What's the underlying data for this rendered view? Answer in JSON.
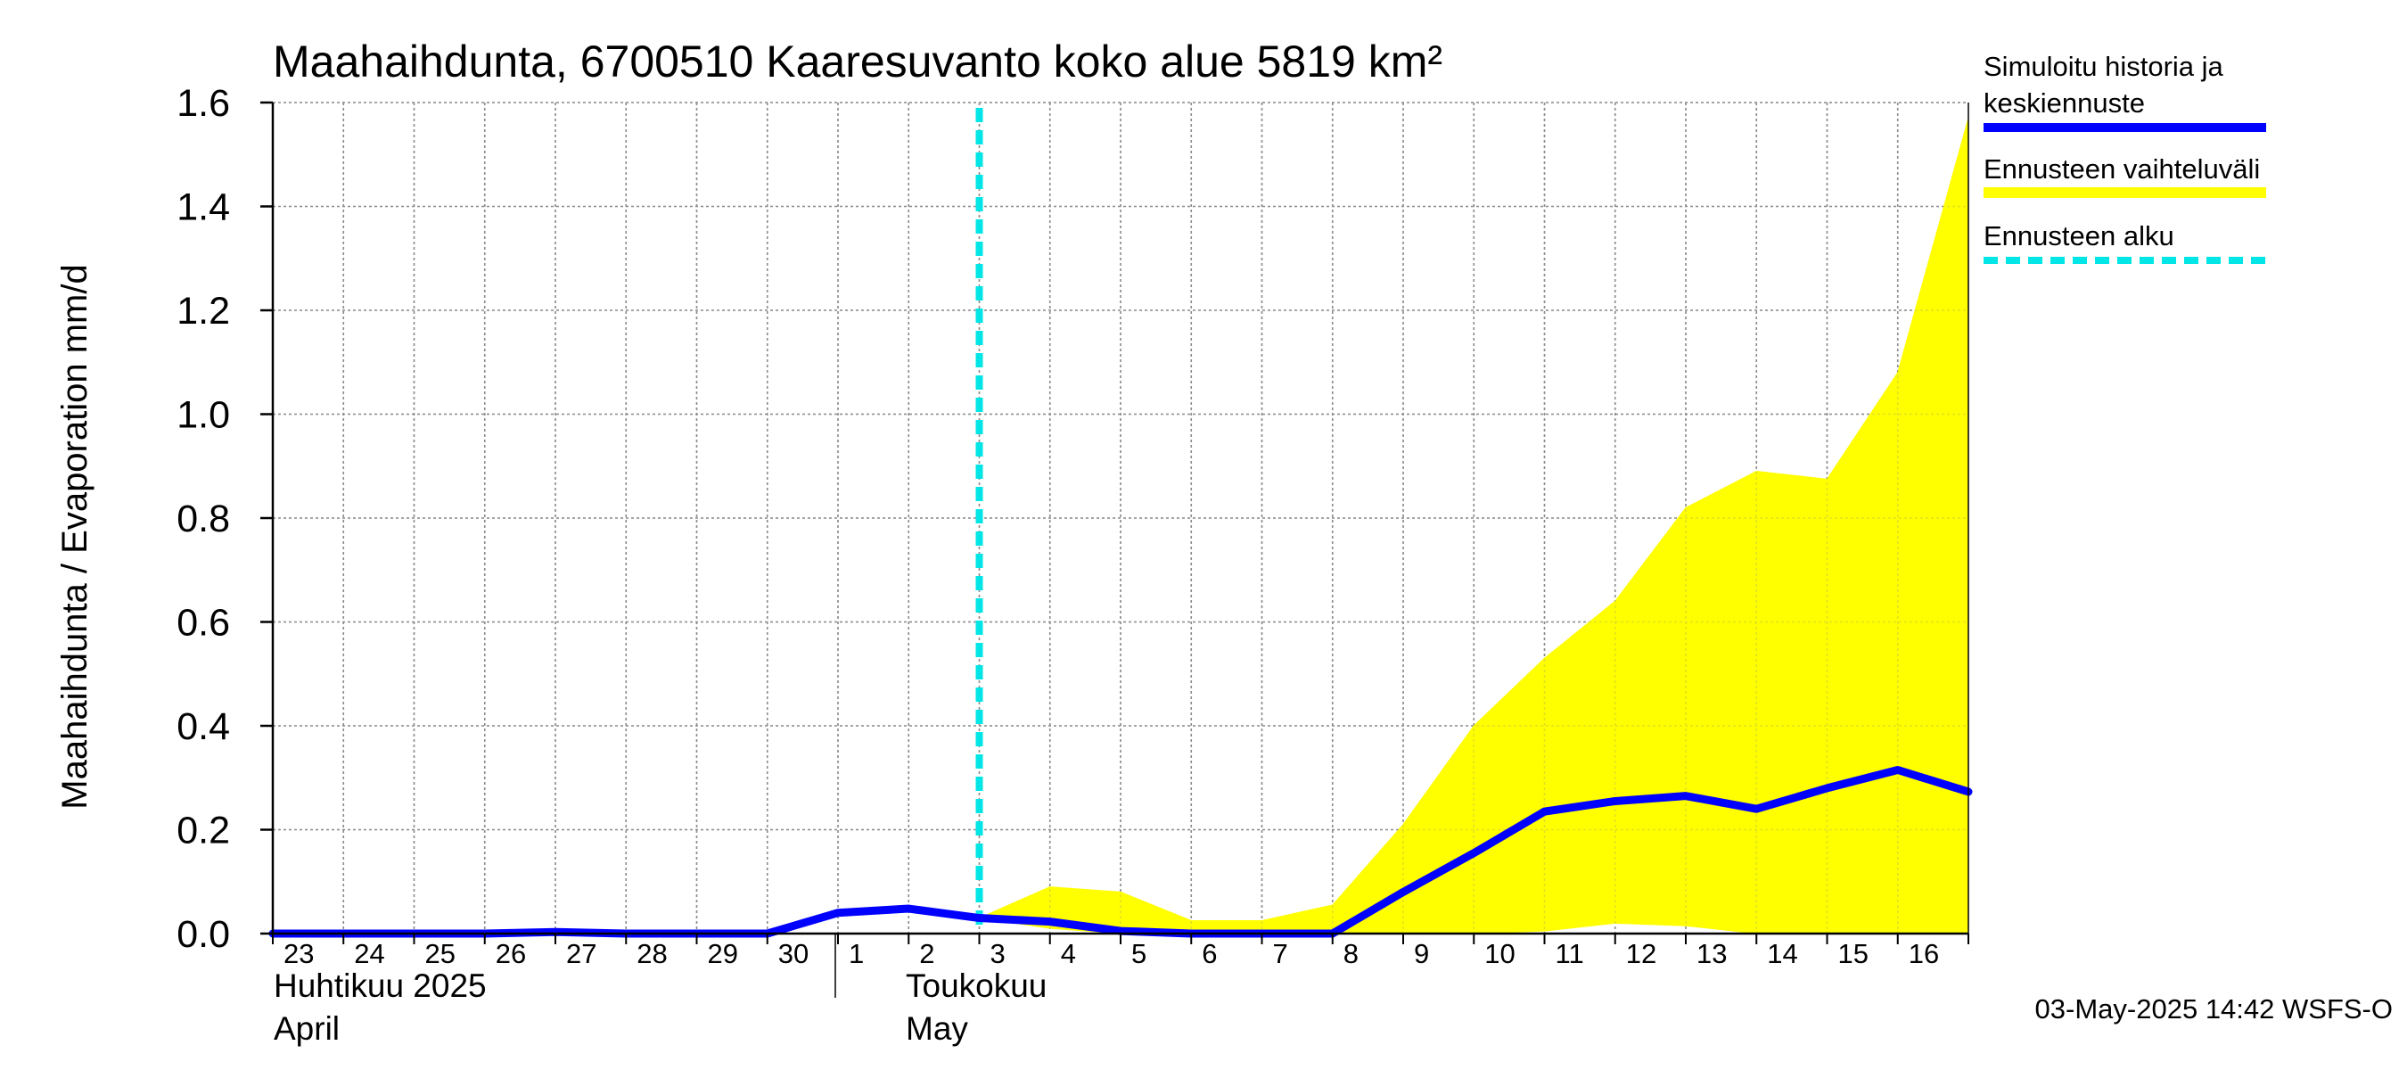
{
  "chart_data": {
    "type": "line",
    "title": "Maahaihdunta, 6700510 Kaaresuvanto koko alue 5819 km²",
    "ylabel": "Maahaihdunta / Evaporation   mm/d",
    "ylim": [
      0,
      1.6
    ],
    "yticks": [
      "0.0",
      "0.2",
      "0.4",
      "0.6",
      "0.8",
      "1.0",
      "1.2",
      "1.4",
      "1.6"
    ],
    "ytick_values": [
      0,
      0.2,
      0.4,
      0.6,
      0.8,
      1.0,
      1.2,
      1.4,
      1.6
    ],
    "x_range": [
      "2025-04-23",
      "2025-05-17"
    ],
    "xtick_labels": [
      "23",
      "24",
      "25",
      "26",
      "27",
      "28",
      "29",
      "30",
      "1",
      "2",
      "3",
      "4",
      "5",
      "6",
      "7",
      "8",
      "9",
      "10",
      "11",
      "12",
      "13",
      "14",
      "15",
      "16"
    ],
    "xtick_dates": [
      "2025-04-23",
      "2025-04-24",
      "2025-04-25",
      "2025-04-26",
      "2025-04-27",
      "2025-04-28",
      "2025-04-29",
      "2025-04-30",
      "2025-05-01",
      "2025-05-02",
      "2025-05-03",
      "2025-05-04",
      "2025-05-05",
      "2025-05-06",
      "2025-05-07",
      "2025-05-08",
      "2025-05-09",
      "2025-05-10",
      "2025-05-11",
      "2025-05-12",
      "2025-05-13",
      "2025-05-14",
      "2025-05-15",
      "2025-05-16"
    ],
    "months": [
      {
        "fi": "Huhtikuu  2025",
        "en": "April",
        "date": "2025-04-23"
      },
      {
        "fi": "Toukokuu",
        "en": "May",
        "date": "2025-05-01"
      }
    ],
    "grid": true,
    "series": [
      {
        "name": "Simuloitu historia ja keskiennuste",
        "color": "#0000ff",
        "x": [
          "2025-04-23",
          "2025-04-24",
          "2025-04-25",
          "2025-04-26",
          "2025-04-27",
          "2025-04-28",
          "2025-04-29",
          "2025-04-30",
          "2025-05-01",
          "2025-05-02",
          "2025-05-03",
          "2025-05-04",
          "2025-05-05",
          "2025-05-06",
          "2025-05-07",
          "2025-05-08",
          "2025-05-09",
          "2025-05-10",
          "2025-05-11",
          "2025-05-12",
          "2025-05-13",
          "2025-05-14",
          "2025-05-15",
          "2025-05-16",
          "2025-05-17"
        ],
        "y": [
          0.0,
          0.0,
          0.0,
          0.0,
          0.003,
          0.0,
          0.0,
          0.0,
          0.04,
          0.048,
          0.03,
          0.023,
          0.005,
          0.0,
          0.0,
          0.0,
          0.08,
          0.155,
          0.235,
          0.255,
          0.265,
          0.24,
          0.28,
          0.315,
          0.273
        ]
      }
    ],
    "band": {
      "name": "Ennusteen vaihteluväli",
      "color": "#ffff00",
      "x": [
        "2025-05-03",
        "2025-05-04",
        "2025-05-05",
        "2025-05-06",
        "2025-05-07",
        "2025-05-08",
        "2025-05-09",
        "2025-05-10",
        "2025-05-11",
        "2025-05-12",
        "2025-05-13",
        "2025-05-14",
        "2025-05-15",
        "2025-05-16",
        "2025-05-17"
      ],
      "upper": [
        0.03,
        0.09,
        0.08,
        0.025,
        0.025,
        0.055,
        0.21,
        0.4,
        0.53,
        0.64,
        0.82,
        0.89,
        0.875,
        1.08,
        1.57
      ],
      "lower": [
        0.03,
        0.01,
        0.0,
        0.0,
        0.0,
        0.0,
        0.0,
        0.0,
        0.005,
        0.02,
        0.015,
        0.0,
        0.0,
        0.0,
        0.0
      ]
    },
    "forecast_start": {
      "name": "Ennusteen alku",
      "date": "2025-05-03",
      "color": "#00e5e5"
    },
    "legend": {
      "placement": "right",
      "items": [
        {
          "label_line1": "Simuloitu historia ja",
          "label_line2": "keskiennuste",
          "color": "#0000ff",
          "style": "solid"
        },
        {
          "label_line1": "Ennusteen vaihteluväli",
          "label_line2": "",
          "color": "#ffff00",
          "style": "solid"
        },
        {
          "label_line1": "Ennusteen alku",
          "label_line2": "",
          "color": "#00e5e5",
          "style": "dashed"
        }
      ]
    },
    "footer": "03-May-2025 14:42 WSFS-O"
  }
}
